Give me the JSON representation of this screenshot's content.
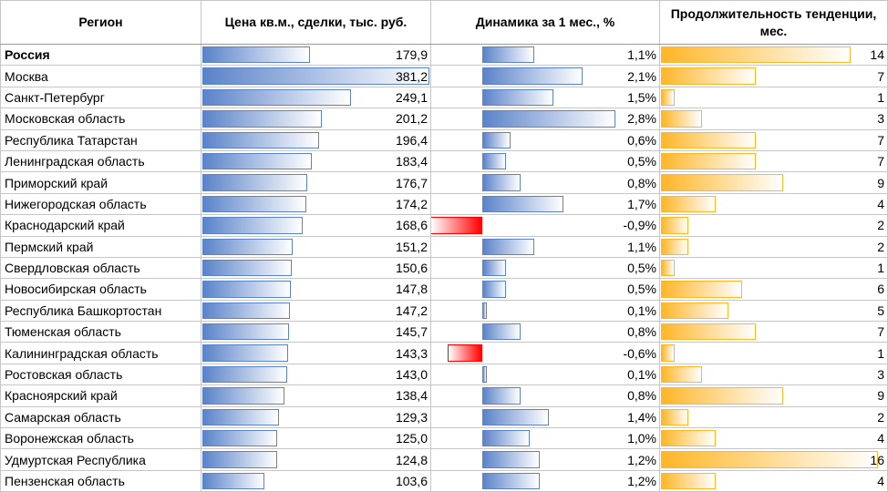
{
  "headers": {
    "region": "Регион",
    "price": "Цена кв.м., сделки, тыс. руб.",
    "dynamics": "Динамика за 1 мес., %",
    "duration": "Продолжительность тенденции, мес."
  },
  "colors": {
    "bar_positive": "#5b83c9",
    "bar_negative": "#ff0000",
    "bar_duration": "#ffb628"
  },
  "chart_data": {
    "type": "table",
    "columns": [
      "Регион",
      "Цена кв.м., сделки, тыс. руб.",
      "Динамика за 1 мес., %",
      "Продолжительность тенденции, мес."
    ],
    "rows": [
      {
        "region": "Россия",
        "price": 179.9,
        "price_text": "179,9",
        "dyn": 1.1,
        "dyn_text": "1,1%",
        "months": 14,
        "months_text": "14",
        "bold": true
      },
      {
        "region": "Москва",
        "price": 381.2,
        "price_text": "381,2",
        "dyn": 2.1,
        "dyn_text": "2,1%",
        "months": 7,
        "months_text": "7"
      },
      {
        "region": "Санкт-Петербург",
        "price": 249.1,
        "price_text": "249,1",
        "dyn": 1.5,
        "dyn_text": "1,5%",
        "months": 1,
        "months_text": "1"
      },
      {
        "region": "Московская область",
        "price": 201.2,
        "price_text": "201,2",
        "dyn": 2.8,
        "dyn_text": "2,8%",
        "months": 3,
        "months_text": "3"
      },
      {
        "region": "Республика Татарстан",
        "price": 196.4,
        "price_text": "196,4",
        "dyn": 0.6,
        "dyn_text": "0,6%",
        "months": 7,
        "months_text": "7"
      },
      {
        "region": "Ленинградская область",
        "price": 183.4,
        "price_text": "183,4",
        "dyn": 0.5,
        "dyn_text": "0,5%",
        "months": 7,
        "months_text": "7"
      },
      {
        "region": "Приморский край",
        "price": 176.7,
        "price_text": "176,7",
        "dyn": 0.8,
        "dyn_text": "0,8%",
        "months": 9,
        "months_text": "9"
      },
      {
        "region": "Нижегородская область",
        "price": 174.2,
        "price_text": "174,2",
        "dyn": 1.7,
        "dyn_text": "1,7%",
        "months": 4,
        "months_text": "4"
      },
      {
        "region": "Краснодарский край",
        "price": 168.6,
        "price_text": "168,6",
        "dyn": -0.9,
        "dyn_text": "-0,9%",
        "months": 2,
        "months_text": "2"
      },
      {
        "region": "Пермский край",
        "price": 151.2,
        "price_text": "151,2",
        "dyn": 1.1,
        "dyn_text": "1,1%",
        "months": 2,
        "months_text": "2"
      },
      {
        "region": "Свердловская область",
        "price": 150.6,
        "price_text": "150,6",
        "dyn": 0.5,
        "dyn_text": "0,5%",
        "months": 1,
        "months_text": "1"
      },
      {
        "region": "Новосибирская область",
        "price": 147.8,
        "price_text": "147,8",
        "dyn": 0.5,
        "dyn_text": "0,5%",
        "months": 6,
        "months_text": "6"
      },
      {
        "region": "Республика Башкортостан",
        "price": 147.2,
        "price_text": "147,2",
        "dyn": 0.1,
        "dyn_text": "0,1%",
        "months": 5,
        "months_text": "5"
      },
      {
        "region": "Тюменская область",
        "price": 145.7,
        "price_text": "145,7",
        "dyn": 0.8,
        "dyn_text": "0,8%",
        "months": 7,
        "months_text": "7"
      },
      {
        "region": "Калининградская область",
        "price": 143.3,
        "price_text": "143,3",
        "dyn": -0.6,
        "dyn_text": "-0,6%",
        "months": 1,
        "months_text": "1"
      },
      {
        "region": "Ростовская область",
        "price": 143.0,
        "price_text": "143,0",
        "dyn": 0.1,
        "dyn_text": "0,1%",
        "months": 3,
        "months_text": "3"
      },
      {
        "region": "Красноярский край",
        "price": 138.4,
        "price_text": "138,4",
        "dyn": 0.8,
        "dyn_text": "0,8%",
        "months": 9,
        "months_text": "9"
      },
      {
        "region": "Самарская область",
        "price": 129.3,
        "price_text": "129,3",
        "dyn": 1.4,
        "dyn_text": "1,4%",
        "months": 2,
        "months_text": "2"
      },
      {
        "region": "Воронежская область",
        "price": 125.0,
        "price_text": "125,0",
        "dyn": 1.0,
        "dyn_text": "1,0%",
        "months": 4,
        "months_text": "4"
      },
      {
        "region": "Удмуртская Республика",
        "price": 124.8,
        "price_text": "124,8",
        "dyn": 1.2,
        "dyn_text": "1,2%",
        "months": 16,
        "months_text": "16"
      },
      {
        "region": "Пензенская область",
        "price": 103.6,
        "price_text": "103,6",
        "dyn": 1.2,
        "dyn_text": "1,2%",
        "months": 4,
        "months_text": "4"
      }
    ]
  }
}
